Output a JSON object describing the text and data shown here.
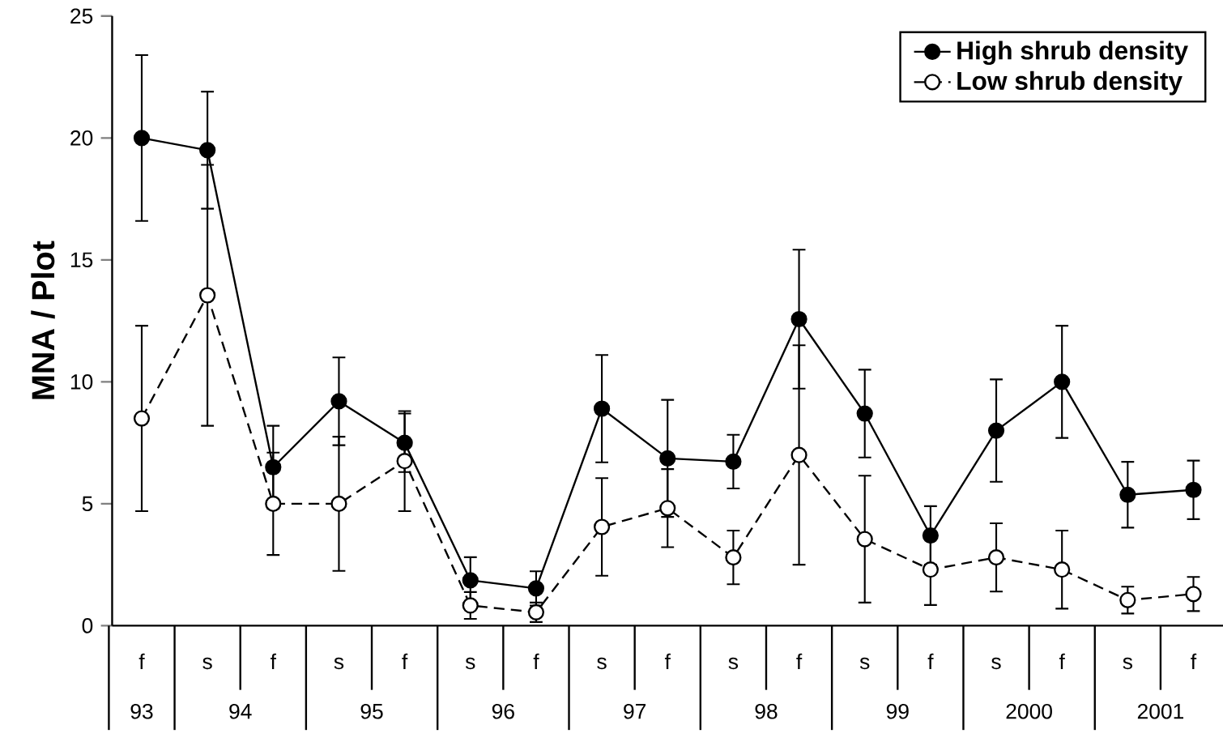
{
  "chart_data": {
    "type": "line",
    "ylabel": "MNA / Plot",
    "categories": [
      "f",
      "s",
      "f",
      "s",
      "f",
      "s",
      "f",
      "s",
      "f",
      "s",
      "f",
      "s",
      "f",
      "s",
      "f",
      "s",
      "f"
    ],
    "annotations": [
      "93",
      "94",
      "95",
      "96",
      "97",
      "98",
      "99",
      "2000",
      "2001"
    ],
    "series": [
      {
        "name": "High shrub density",
        "color": "#000000",
        "line_style": "solid",
        "values": [
          20.0,
          19.5,
          6.5,
          9.2,
          7.5,
          1.86,
          1.53,
          8.9,
          6.86,
          6.73,
          12.57,
          8.7,
          3.7,
          8.0,
          10.0,
          5.37,
          5.57
        ],
        "errors": [
          3.4,
          2.4,
          1.7,
          1.8,
          1.2,
          0.95,
          0.7,
          2.2,
          2.4,
          1.1,
          2.85,
          1.8,
          1.2,
          2.1,
          2.3,
          1.35,
          1.2
        ]
      },
      {
        "name": "Low shrub density",
        "color": "#000000",
        "line_style": "dashed",
        "values": [
          8.5,
          13.55,
          5.0,
          5.0,
          6.75,
          0.83,
          0.55,
          4.05,
          4.82,
          2.8,
          7.0,
          3.55,
          2.3,
          2.8,
          2.3,
          1.05,
          1.3
        ],
        "errors": [
          3.8,
          5.35,
          2.1,
          2.75,
          2.05,
          0.55,
          0.4,
          2.0,
          1.6,
          1.1,
          4.5,
          2.6,
          1.45,
          1.4,
          1.6,
          0.55,
          0.7
        ]
      }
    ],
    "ylim": [
      0,
      25
    ],
    "yticks": [
      0,
      5,
      10,
      15,
      20,
      25
    ],
    "marker": "circle",
    "legend": "top right"
  }
}
